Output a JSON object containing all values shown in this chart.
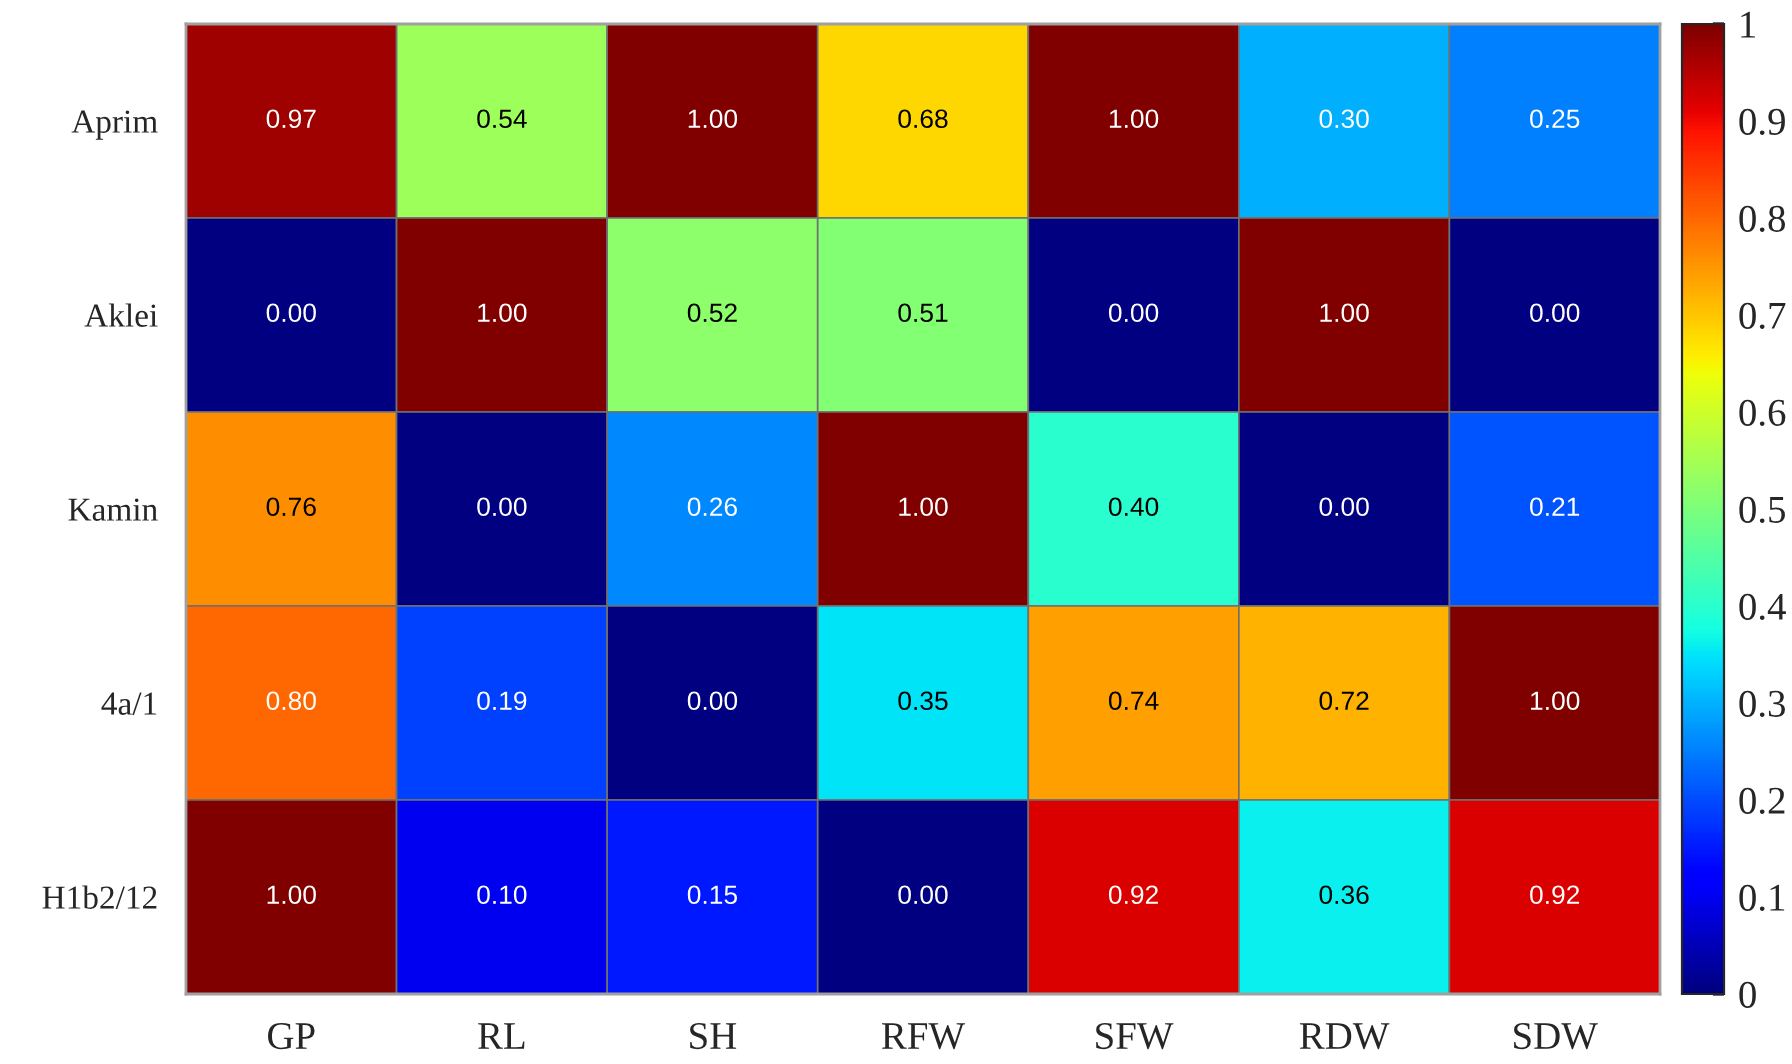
{
  "chart_data": {
    "type": "heatmap",
    "categories": [
      "GP",
      "RL",
      "SH",
      "RFW",
      "SFW",
      "RDW",
      "SDW"
    ],
    "y_categories": [
      "Aprim",
      "Aklei",
      "Kamin",
      "4a/1",
      "H1b2/12"
    ],
    "cells": [
      [
        0.97,
        0.54,
        1.0,
        0.68,
        1.0,
        0.3,
        0.25
      ],
      [
        0.0,
        1.0,
        0.52,
        0.51,
        0.0,
        1.0,
        0.0
      ],
      [
        0.76,
        0.0,
        0.26,
        1.0,
        0.4,
        0.0,
        0.21
      ],
      [
        0.8,
        0.19,
        0.0,
        0.35,
        0.74,
        0.72,
        1.0
      ],
      [
        1.0,
        0.1,
        0.15,
        0.0,
        0.92,
        0.36,
        0.92
      ]
    ],
    "cell_labels": [
      [
        "0.97",
        "0.54",
        "1.00",
        "0.68",
        "1.00",
        "0.30",
        "0.25"
      ],
      [
        "0.00",
        "1.00",
        "0.52",
        "0.51",
        "0.00",
        "1.00",
        "0.00"
      ],
      [
        "0.76",
        "0.00",
        "0.26",
        "1.00",
        "0.40",
        "0.00",
        "0.21"
      ],
      [
        "0.80",
        "0.19",
        "0.00",
        "0.35",
        "0.74",
        "0.72",
        "1.00"
      ],
      [
        "1.00",
        "0.10",
        "0.15",
        "0.00",
        "0.92",
        "0.36",
        "0.92"
      ]
    ],
    "clim": [
      0,
      1
    ],
    "cticks": [
      0,
      0.1,
      0.2,
      0.3,
      0.4,
      0.5,
      0.6,
      0.7,
      0.8,
      0.9,
      1
    ]
  }
}
